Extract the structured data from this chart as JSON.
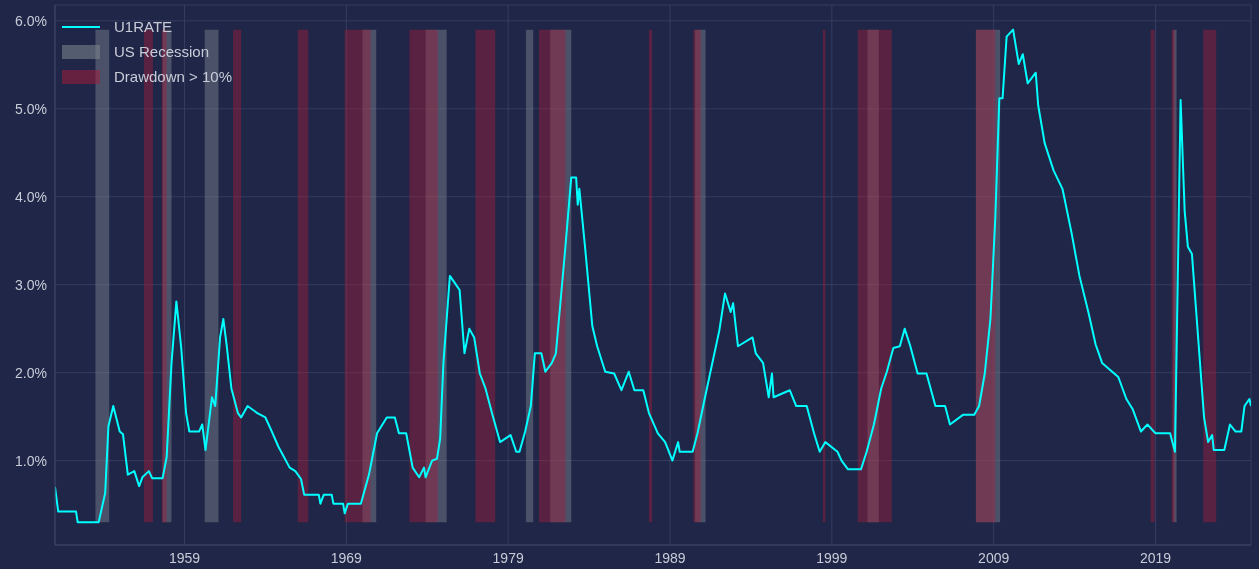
{
  "chart_data": {
    "type": "line",
    "x": [
      1951.0,
      1951.2,
      1952.3,
      1952.4,
      1953.7,
      1954.1,
      1954.3,
      1954.6,
      1955.0,
      1955.2,
      1955.5,
      1955.9,
      1956.2,
      1956.4,
      1956.8,
      1957.0,
      1957.65,
      1957.9,
      1958.2,
      1958.5,
      1958.8,
      1959.1,
      1959.3,
      1959.9,
      1960.1,
      1960.3,
      1960.7,
      1960.9,
      1961.2,
      1961.4,
      1961.6,
      1961.9,
      1962.3,
      1962.5,
      1962.9,
      1963.5,
      1964.0,
      1964.4,
      1964.8,
      1965.5,
      1965.85,
      1966.2,
      1966.4,
      1967.3,
      1967.4,
      1967.6,
      1968.1,
      1968.2,
      1968.8,
      1968.9,
      1969.1,
      1969.9,
      1970.4,
      1970.9,
      1971.5,
      1972.0,
      1972.25,
      1972.7,
      1973.1,
      1973.5,
      1973.8,
      1973.9,
      1974.3,
      1974.6,
      1974.8,
      1975.0,
      1975.4,
      1975.7,
      1976.0,
      1976.3,
      1976.6,
      1976.9,
      1977.25,
      1977.6,
      1978.0,
      1978.5,
      1979.15,
      1979.5,
      1979.7,
      1980.05,
      1980.4,
      1980.65,
      1981.05,
      1981.3,
      1981.7,
      1981.95,
      1982.5,
      1982.9,
      1983.2,
      1983.3,
      1983.4,
      1983.75,
      1984.2,
      1984.5,
      1985.0,
      1985.55,
      1986.0,
      1986.45,
      1986.8,
      1987.35,
      1987.7,
      1988.25,
      1988.7,
      1989.15,
      1989.5,
      1989.6,
      1990.4,
      1990.7,
      1991.05,
      1991.5,
      1992.05,
      1992.4,
      1992.75,
      1992.9,
      1993.2,
      1994.1,
      1994.3,
      1994.75,
      1995.1,
      1995.3,
      1995.4,
      1996.4,
      1996.8,
      1997.45,
      1997.9,
      1998.25,
      1998.6,
      1999.35,
      1999.6,
      2000.0,
      2000.8,
      2001.15,
      2001.6,
      2002.05,
      2002.4,
      2002.8,
      2003.2,
      2003.5,
      2003.85,
      2004.3,
      2004.85,
      2005.4,
      2006.0,
      2006.3,
      2007.1,
      2007.8,
      2008.1,
      2008.45,
      2008.8,
      2009.1,
      2009.35,
      2009.55,
      2009.8,
      2010.2,
      2010.55,
      2010.8,
      2011.1,
      2011.6,
      2011.75,
      2012.15,
      2012.7,
      2013.25,
      2013.8,
      2014.3,
      2014.85,
      2015.3,
      2015.7,
      2016.2,
      2016.7,
      2017.2,
      2017.6,
      2018.1,
      2018.5,
      2019.0,
      2019.9,
      2020.2,
      2020.4,
      2020.55,
      2020.8,
      2021.0,
      2021.25,
      2021.35,
      2022.0,
      2022.25,
      2022.5,
      2022.6,
      2023.25,
      2023.6,
      2023.95,
      2024.3,
      2024.5,
      2024.8,
      2024.9
    ],
    "series": [
      {
        "name": "U1RATE",
        "color": "#00ffff",
        "values": [
          0.7,
          0.42,
          0.42,
          0.3,
          0.3,
          0.63,
          1.39,
          1.62,
          1.33,
          1.3,
          0.84,
          0.88,
          0.71,
          0.81,
          0.88,
          0.8,
          0.8,
          1.04,
          2.11,
          2.81,
          2.28,
          1.54,
          1.33,
          1.33,
          1.41,
          1.12,
          1.72,
          1.62,
          2.4,
          2.61,
          2.32,
          1.82,
          1.54,
          1.49,
          1.62,
          1.54,
          1.49,
          1.33,
          1.16,
          0.92,
          0.88,
          0.79,
          0.61,
          0.61,
          0.51,
          0.61,
          0.61,
          0.51,
          0.51,
          0.4,
          0.51,
          0.51,
          0.84,
          1.31,
          1.49,
          1.49,
          1.31,
          1.31,
          0.92,
          0.81,
          0.92,
          0.81,
          1.0,
          1.02,
          1.25,
          2.11,
          3.1,
          3.02,
          2.94,
          2.22,
          2.5,
          2.4,
          1.99,
          1.82,
          1.54,
          1.21,
          1.29,
          1.1,
          1.1,
          1.33,
          1.62,
          2.22,
          2.22,
          2.01,
          2.11,
          2.22,
          3.35,
          4.22,
          4.22,
          3.91,
          4.09,
          3.43,
          2.53,
          2.3,
          2.01,
          1.99,
          1.8,
          2.01,
          1.8,
          1.8,
          1.54,
          1.31,
          1.21,
          1.0,
          1.21,
          1.1,
          1.1,
          1.31,
          1.62,
          2.01,
          2.48,
          2.9,
          2.69,
          2.79,
          2.3,
          2.4,
          2.22,
          2.11,
          1.72,
          1.99,
          1.72,
          1.8,
          1.62,
          1.62,
          1.31,
          1.1,
          1.21,
          1.1,
          1.0,
          0.9,
          0.9,
          1.1,
          1.41,
          1.82,
          2.01,
          2.28,
          2.3,
          2.5,
          2.3,
          1.99,
          1.99,
          1.62,
          1.62,
          1.41,
          1.52,
          1.52,
          1.62,
          1.99,
          2.61,
          3.76,
          5.12,
          5.12,
          5.82,
          5.9,
          5.51,
          5.62,
          5.29,
          5.41,
          5.04,
          4.61,
          4.3,
          4.09,
          3.6,
          3.1,
          2.69,
          2.32,
          2.11,
          2.03,
          1.95,
          1.7,
          1.58,
          1.33,
          1.41,
          1.31,
          1.31,
          1.1,
          3.35,
          5.1,
          3.84,
          3.43,
          3.35,
          3.1,
          1.49,
          1.21,
          1.29,
          1.12,
          1.12,
          1.41,
          1.33,
          1.33,
          1.62,
          1.7,
          1.62
        ]
      }
    ],
    "xlim": [
      1951.0,
      2024.9
    ],
    "xticks": [
      1959,
      1969,
      1979,
      1989,
      1999,
      2009,
      2019
    ],
    "ylim": [
      0.04,
      6.18
    ],
    "yticks": [
      {
        "value": 1,
        "label": "1.0%"
      },
      {
        "value": 2,
        "label": "2.0%"
      },
      {
        "value": 3,
        "label": "3.0%"
      },
      {
        "value": 4,
        "label": "4.0%"
      },
      {
        "value": 5,
        "label": "5.0%"
      },
      {
        "value": 6,
        "label": "6.0%"
      }
    ],
    "bands": [
      {
        "axis": "x",
        "from": 1953.5,
        "to": 1954.35,
        "label": "US Recession",
        "color": "#808890"
      },
      {
        "axis": "x",
        "from": 1957.65,
        "to": 1958.2,
        "color": "#808890"
      },
      {
        "axis": "x",
        "from": 1960.25,
        "to": 1961.1,
        "color": "#808890"
      },
      {
        "axis": "x",
        "from": 1970.0,
        "to": 1970.85,
        "color": "#808890"
      },
      {
        "axis": "x",
        "from": 1973.9,
        "to": 1975.2,
        "color": "#808890"
      },
      {
        "axis": "x",
        "from": 1980.1,
        "to": 1980.55,
        "color": "#808890"
      },
      {
        "axis": "x",
        "from": 1981.6,
        "to": 1982.9,
        "color": "#808890"
      },
      {
        "axis": "x",
        "from": 1990.55,
        "to": 1991.2,
        "color": "#808890"
      },
      {
        "axis": "x",
        "from": 2001.2,
        "to": 2001.9,
        "color": "#808890"
      },
      {
        "axis": "x",
        "from": 2007.9,
        "to": 2009.4,
        "color": "#808890"
      },
      {
        "axis": "x",
        "from": 2020.1,
        "to": 2020.3,
        "color": "#808890"
      },
      {
        "axis": "x",
        "from": 1956.5,
        "to": 1957.05,
        "label": "Drawdown > 10%",
        "color": "#a01e3c"
      },
      {
        "axis": "x",
        "from": 1957.6,
        "to": 1957.9,
        "color": "#a01e3c"
      },
      {
        "axis": "x",
        "from": 1962.0,
        "to": 1962.5,
        "color": "#a01e3c"
      },
      {
        "axis": "x",
        "from": 1966.0,
        "to": 1966.65,
        "color": "#a01e3c"
      },
      {
        "axis": "x",
        "from": 1968.9,
        "to": 1970.5,
        "color": "#a01e3c"
      },
      {
        "axis": "x",
        "from": 1972.9,
        "to": 1974.65,
        "color": "#a01e3c"
      },
      {
        "axis": "x",
        "from": 1976.98,
        "to": 1978.2,
        "color": "#a01e3c"
      },
      {
        "axis": "x",
        "from": 1980.9,
        "to": 1982.55,
        "color": "#a01e3c"
      },
      {
        "axis": "x",
        "from": 1987.7,
        "to": 1987.9,
        "color": "#a01e3c"
      },
      {
        "axis": "x",
        "from": 1990.45,
        "to": 1990.9,
        "color": "#a01e3c"
      },
      {
        "axis": "x",
        "from": 1998.45,
        "to": 1998.6,
        "color": "#a01e3c"
      },
      {
        "axis": "x",
        "from": 2000.6,
        "to": 2002.7,
        "color": "#a01e3c"
      },
      {
        "axis": "x",
        "from": 2007.9,
        "to": 2009.1,
        "color": "#a01e3c"
      },
      {
        "axis": "x",
        "from": 2018.7,
        "to": 2018.95,
        "color": "#a01e3c"
      },
      {
        "axis": "x",
        "from": 2020.0,
        "to": 2020.2,
        "color": "#a01e3c"
      },
      {
        "axis": "x",
        "from": 2021.95,
        "to": 2022.75,
        "color": "#a01e3c"
      }
    ],
    "grid": true,
    "legend": "top left",
    "marker": "none",
    "line_style": "solid"
  }
}
